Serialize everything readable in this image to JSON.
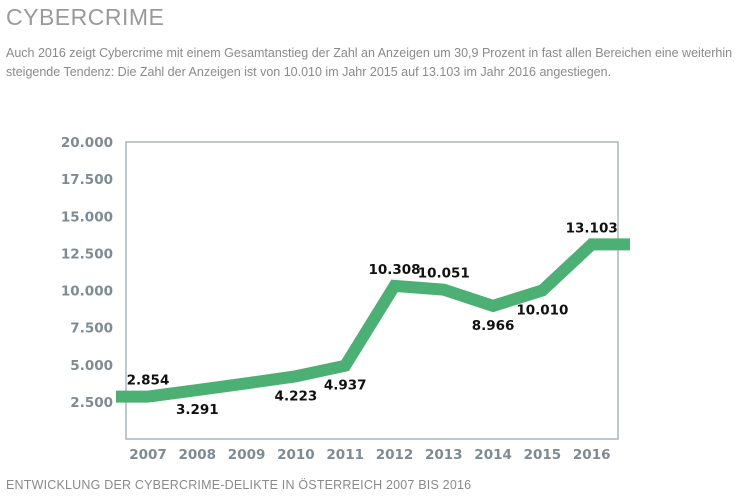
{
  "header": {
    "title": "CYBERCRIME",
    "intro": "Auch 2016 zeigt Cybercrime mit einem Gesamtanstieg der Zahl an Anzeigen um 30,9 Prozent in fast allen Bereichen eine weiterhin steigende Tendenz: Die Zahl der Anzeigen ist von 10.010 im Jahr 2015 auf 13.103 im Jahr 2016 angestiegen."
  },
  "caption": "ENTWICKLUNG DER CYBERCRIME-DELIKTE IN ÖSTERREICH 2007 BIS 2016",
  "colors": {
    "line": "#4caf73",
    "frame": "#a9b5bd",
    "tick_text": "#7f8b92",
    "label_text": "#111111"
  },
  "chart_data": {
    "type": "line",
    "categories": [
      "2007",
      "2008",
      "2009",
      "2010",
      "2011",
      "2012",
      "2013",
      "2014",
      "2015",
      "2016"
    ],
    "series": [
      {
        "values": [
          2854,
          3291,
          3750,
          4223,
          4937,
          10308,
          10051,
          8966,
          10010,
          13103
        ]
      }
    ],
    "data_labels": [
      {
        "index": 0,
        "text": "2.854",
        "position": "above"
      },
      {
        "index": 1,
        "text": "3.291",
        "position": "below"
      },
      {
        "index": 3,
        "text": "4.223",
        "position": "below"
      },
      {
        "index": 4,
        "text": "4.937",
        "position": "below"
      },
      {
        "index": 5,
        "text": "10.308",
        "position": "above"
      },
      {
        "index": 6,
        "text": "10.051",
        "position": "above"
      },
      {
        "index": 7,
        "text": "8.966",
        "position": "below"
      },
      {
        "index": 8,
        "text": "10.010",
        "position": "below"
      },
      {
        "index": 9,
        "text": "13.103",
        "position": "above"
      }
    ],
    "yticks": [
      2500,
      5000,
      7500,
      10000,
      12500,
      15000,
      17500,
      20000
    ],
    "ytick_labels": [
      "2.500",
      "5.000",
      "7.500",
      "10.000",
      "12.500",
      "15.000",
      "17.500",
      "20.000"
    ],
    "ylim": [
      0,
      20000
    ],
    "grid": false,
    "legend": "none"
  }
}
